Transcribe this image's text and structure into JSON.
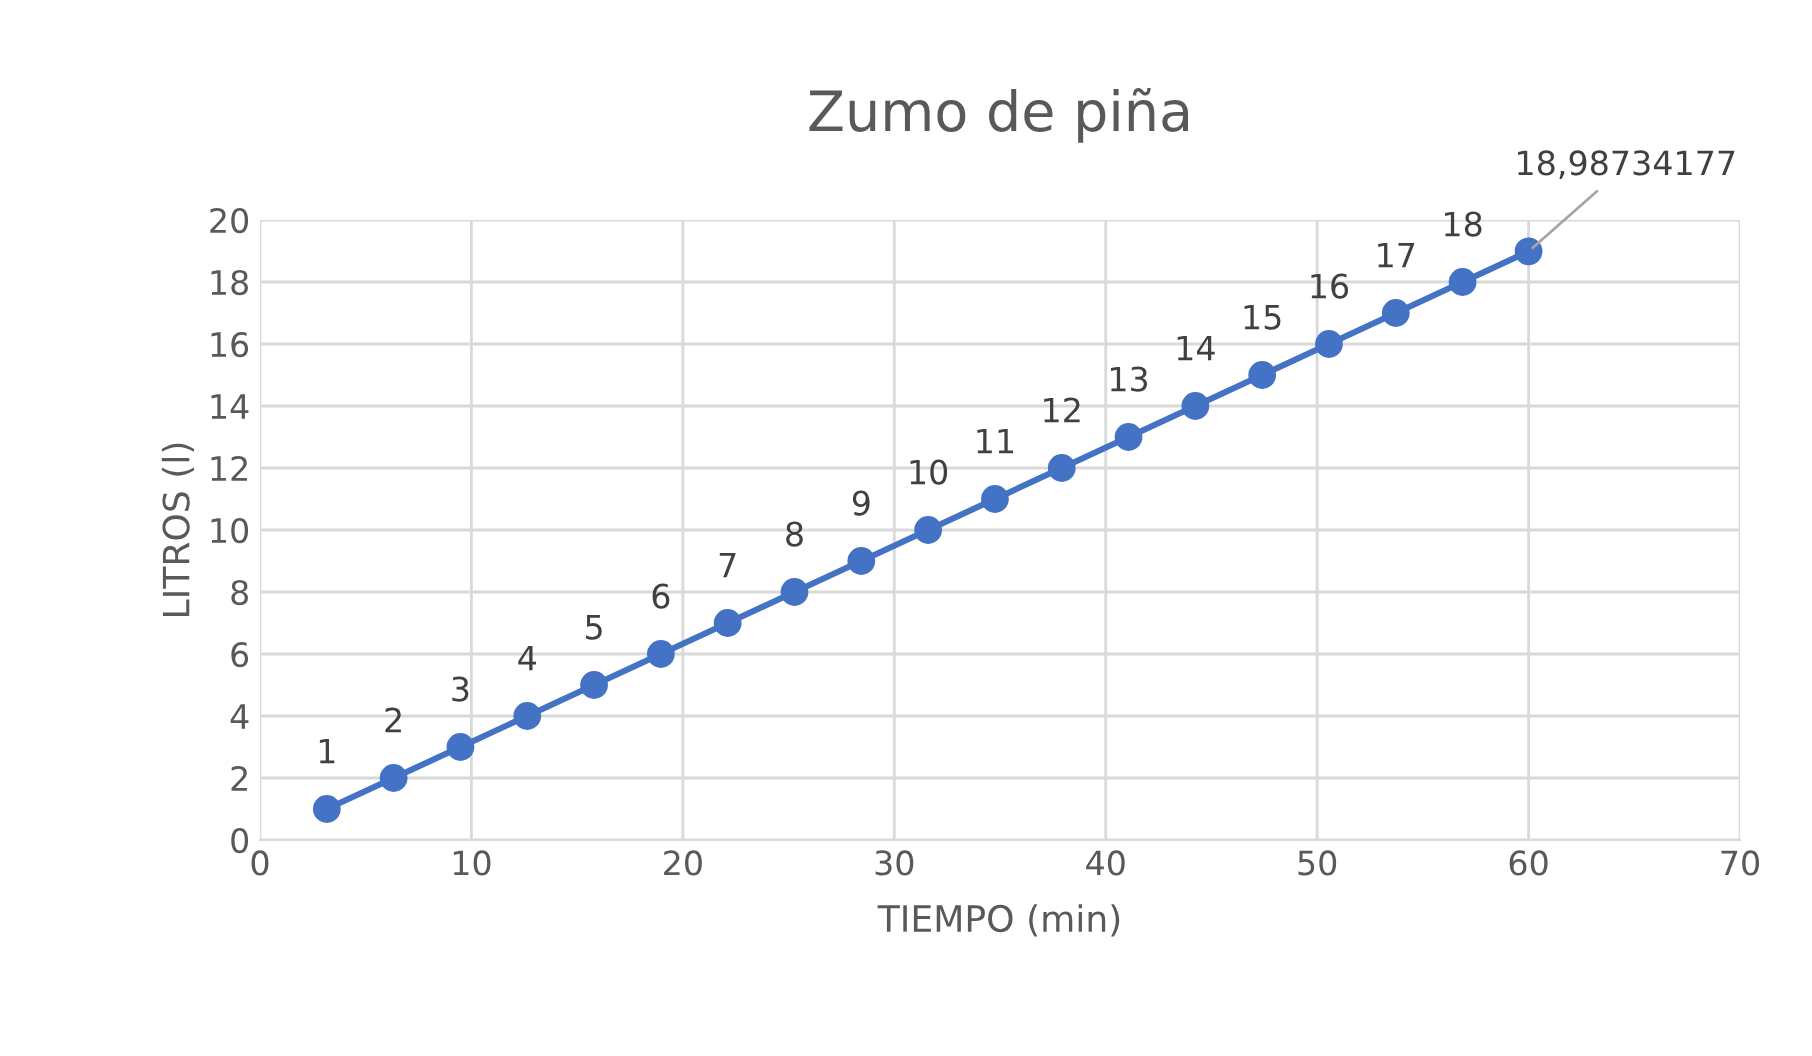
{
  "chart_data": {
    "type": "line",
    "title": "Zumo de piña",
    "xlabel": "TIEMPO (min)",
    "ylabel": "LITROS (l)",
    "x": [
      3.16,
      6.32,
      9.48,
      12.64,
      15.8,
      18.96,
      22.12,
      25.28,
      28.44,
      31.6,
      34.76,
      37.92,
      41.08,
      44.24,
      47.4,
      50.56,
      53.72,
      56.88,
      60
    ],
    "series": [
      {
        "color": "#4472c4",
        "values": [
          1,
          2,
          3,
          4,
          5,
          6,
          7,
          8,
          9,
          10,
          11,
          12,
          13,
          14,
          15,
          16,
          17,
          18,
          18.98734177
        ],
        "value_labels": [
          "1",
          "2",
          "3",
          "4",
          "5",
          "6",
          "7",
          "8",
          "9",
          "10",
          "11",
          "12",
          "13",
          "14",
          "15",
          "16",
          "17",
          "18",
          "18,98734177"
        ]
      }
    ],
    "xlim": [
      0,
      70
    ],
    "xticks": [
      0,
      10,
      20,
      30,
      40,
      50,
      60,
      70
    ],
    "ylim": [
      0,
      20
    ],
    "yticks": [
      0,
      2,
      4,
      6,
      8,
      10,
      12,
      14,
      16,
      18,
      20
    ],
    "grid": true,
    "marker": "circle",
    "line_style": "solid"
  }
}
